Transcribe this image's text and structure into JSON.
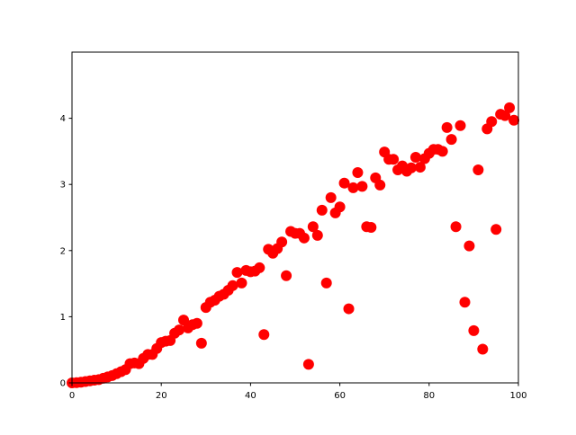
{
  "chart_data": {
    "type": "scatter",
    "title": "",
    "xlabel": "",
    "ylabel": "",
    "xlim": [
      0,
      100
    ],
    "ylim": [
      0,
      5
    ],
    "xticks": [
      0,
      20,
      40,
      60,
      80,
      100
    ],
    "yticks": [
      0,
      1,
      2,
      3,
      4
    ],
    "xtick_labels": [
      "0",
      "20",
      "40",
      "60",
      "80",
      "100"
    ],
    "ytick_labels": [
      "0",
      "1",
      "2",
      "3",
      "4"
    ],
    "grid": false,
    "marker_color": "#ff0000",
    "series": [
      {
        "x": [
          0,
          1,
          2,
          3,
          4,
          5,
          6,
          7,
          8,
          9,
          10,
          11,
          12,
          13,
          14,
          15,
          16,
          17,
          18,
          19,
          20,
          21,
          22,
          23,
          24,
          25,
          26,
          27,
          28,
          29,
          30,
          31,
          32,
          33,
          34,
          35,
          36,
          37,
          38,
          39,
          40,
          41,
          42,
          43,
          44,
          45,
          46,
          47,
          48,
          49,
          50,
          51,
          52,
          53,
          54,
          55,
          56,
          57,
          58,
          59,
          60,
          61,
          62,
          63,
          64,
          65,
          66,
          67,
          68,
          69,
          70,
          71,
          72,
          73,
          74,
          75,
          76,
          77,
          78,
          79,
          80,
          81,
          82,
          83,
          84,
          85,
          86,
          87,
          88,
          89,
          90,
          91,
          92,
          93,
          94,
          95,
          96,
          97,
          98,
          99
        ],
        "y": [
          0,
          0.003,
          0.01,
          0.02,
          0.03,
          0.04,
          0.05,
          0.07,
          0.09,
          0.11,
          0.14,
          0.17,
          0.2,
          0.29,
          0.3,
          0.29,
          0.37,
          0.43,
          0.43,
          0.52,
          0.61,
          0.63,
          0.64,
          0.75,
          0.8,
          0.95,
          0.83,
          0.88,
          0.9,
          0.6,
          1.14,
          1.22,
          1.25,
          1.31,
          1.34,
          1.4,
          1.47,
          1.67,
          1.51,
          1.7,
          1.68,
          1.69,
          1.74,
          0.73,
          2.02,
          1.96,
          2.03,
          2.13,
          1.62,
          2.29,
          2.26,
          2.26,
          2.19,
          0.28,
          2.36,
          2.23,
          2.61,
          1.51,
          2.8,
          2.57,
          2.66,
          3.02,
          1.12,
          2.95,
          3.18,
          2.97,
          2.36,
          2.35,
          3.1,
          2.99,
          3.49,
          3.38,
          3.38,
          3.22,
          3.28,
          3.2,
          3.25,
          3.41,
          3.26,
          3.39,
          3.47,
          3.53,
          3.53,
          3.5,
          3.86,
          3.68,
          2.36,
          3.89,
          1.22,
          2.07,
          0.79,
          3.22,
          0.51,
          3.84,
          3.95,
          2.32,
          4.06,
          4.04,
          4.16,
          3.97
        ]
      }
    ]
  }
}
